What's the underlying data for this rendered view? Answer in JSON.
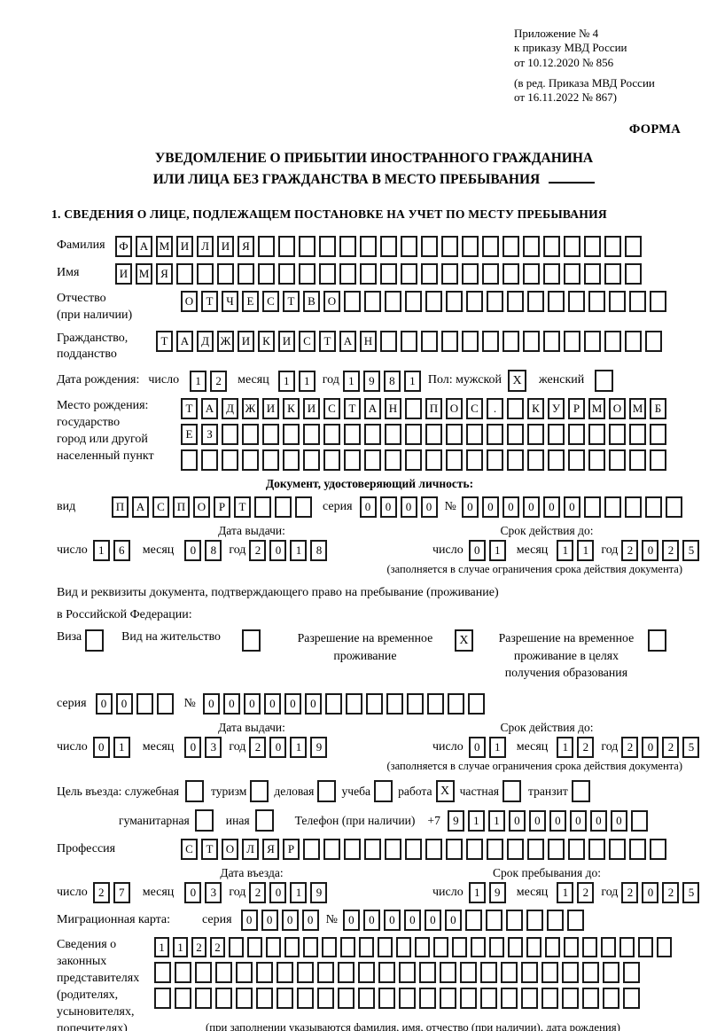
{
  "colors": {
    "ink": "#000000",
    "paper": "#ffffff"
  },
  "mark": "X",
  "page": {
    "appendix": [
      "Приложение № 4",
      "к приказу МВД России",
      "от 10.12.2020 № 856"
    ],
    "amendment": [
      "(в ред. Приказа МВД России",
      "от 16.11.2022 № 867)"
    ],
    "form_label": "ФОРМА",
    "title1": "УВЕДОМЛЕНИЕ О ПРИБЫТИИ ИНОСТРАННОГО ГРАЖДАНИНА",
    "title2": "ИЛИ ЛИЦА БЕЗ ГРАЖДАНСТВА В МЕСТО ПРЕБЫВАНИЯ",
    "section1_heading": "1. СВЕДЕНИЯ О ЛИЦЕ, ПОДЛЕЖАЩЕМ ПОСТАНОВКЕ НА УЧЕТ ПО МЕСТУ ПРЕБЫВАНИЯ"
  },
  "labels": {
    "surname": "Фамилия",
    "name": "Имя",
    "patronymic1": "Отчество",
    "patronymic2": "(при наличии)",
    "citizenship1": "Гражданство,",
    "citizenship2": "подданство",
    "birth_date": "Дата рождения:",
    "day": "число",
    "month": "месяц",
    "year": "год",
    "sex": "Пол: мужской",
    "female": "женский",
    "birth_place1": "Место рождения:",
    "birth_place2": "государство",
    "birth_place3": "город или другой",
    "birth_place4": "населенный пункт",
    "identity_doc": "Документ, удостоверяющий личность:",
    "kind": "вид",
    "series": "серия",
    "number": "№",
    "issue_date": "Дата выдачи:",
    "valid_until": "Срок действия до:",
    "valid_note": "(заполняется в случае ограничения срока действия документа)",
    "residence_doc1": "Вид и реквизиты документа, подтверждающего право на пребывание (проживание)",
    "residence_doc2": "в Российской Федерации:",
    "visa": "Виза",
    "residence_permit": "Вид на жительство",
    "temp_residence": "Разрешение на временное проживание",
    "temp_residence_edu": "Разрешение на временное проживание в целях получения образования",
    "entry_purpose": "Цель въезда: служебная",
    "tourism": "туризм",
    "business": "деловая",
    "study": "учеба",
    "work": "работа",
    "private": "частная",
    "transit": "транзит",
    "humanitarian": "гуманитарная",
    "other": "иная",
    "phone": "Телефон (при наличии)",
    "phone_prefix": "+7",
    "profession": "Профессия",
    "entry_date": "Дата въезда:",
    "stay_until": "Срок пребывания до:",
    "migration_card": "Миграционная карта:",
    "guardians1": "Сведения о",
    "guardians2": "законных",
    "guardians3": "представителях",
    "guardians4": "(родителях,",
    "guardians5": "усыновителях,",
    "guardians6": "попечителях)",
    "guardians_note": "(при заполнении указываются фамилия, имя, отчество (при наличии), дата рождения)"
  },
  "cells": {
    "surname": {
      "text": "ФАМИЛИЯ",
      "len": 26
    },
    "name": {
      "text": "ИМЯ",
      "len": 26
    },
    "patronymic": {
      "text": "ОТЧЕСТВО",
      "len": 24
    },
    "citizenship": {
      "text": "ТАДЖИКИСТАН",
      "len": 25
    },
    "birth_day": {
      "text": "12",
      "len": 2
    },
    "birth_month": {
      "text": "11",
      "len": 2
    },
    "birth_year": {
      "text": "1981",
      "len": 4
    },
    "birth_place_row1": {
      "text": "ТАДЖИКИСТАН ПОС. КУРМОМБ",
      "len": 24
    },
    "birth_place_row2": {
      "text": "ЕЗ",
      "len": 24
    },
    "birth_place_row3": {
      "text": "",
      "len": 24
    },
    "doc_kind": {
      "text": "ПАСПОРТ",
      "len": 10
    },
    "doc_series": {
      "text": "0000",
      "len": 4
    },
    "doc_number": {
      "text": "000000",
      "len": 11
    },
    "doc_issue_day": {
      "text": "16",
      "len": 2
    },
    "doc_issue_month": {
      "text": "08",
      "len": 2
    },
    "doc_issue_year": {
      "text": "2018",
      "len": 4
    },
    "doc_valid_day": {
      "text": "01",
      "len": 2
    },
    "doc_valid_month": {
      "text": "11",
      "len": 2
    },
    "doc_valid_year": {
      "text": "2025",
      "len": 4
    },
    "res_series": {
      "text": "00",
      "len": 4
    },
    "res_number": {
      "text": "000000",
      "len": 14
    },
    "res_issue_day": {
      "text": "01",
      "len": 2
    },
    "res_issue_month": {
      "text": "03",
      "len": 2
    },
    "res_issue_year": {
      "text": "2019",
      "len": 4
    },
    "res_valid_day": {
      "text": "01",
      "len": 2
    },
    "res_valid_month": {
      "text": "12",
      "len": 2
    },
    "res_valid_year": {
      "text": "2025",
      "len": 4
    },
    "phone": {
      "text": "911000000",
      "len": 10
    },
    "profession": {
      "text": "СТОЛЯР",
      "len": 24
    },
    "entry_day": {
      "text": "27",
      "len": 2
    },
    "entry_month": {
      "text": "03",
      "len": 2
    },
    "entry_year": {
      "text": "2019",
      "len": 4
    },
    "stay_day": {
      "text": "19",
      "len": 2
    },
    "stay_month": {
      "text": "12",
      "len": 2
    },
    "stay_year": {
      "text": "2025",
      "len": 4
    },
    "mig_series": {
      "text": "0000",
      "len": 4
    },
    "mig_number": {
      "text": "000000",
      "len": 12
    },
    "guardians_row1": {
      "text": "1122",
      "len": 28
    },
    "guardians_row2": {
      "text": "",
      "len": 24
    },
    "guardians_row3": {
      "text": "",
      "len": 24
    }
  },
  "checks": {
    "sex_male": true,
    "sex_female": false,
    "visa": false,
    "residence_permit": false,
    "temp_residence": true,
    "temp_residence_edu": false,
    "purpose_official": false,
    "purpose_tourism": false,
    "purpose_business": false,
    "purpose_study": false,
    "purpose_work": true,
    "purpose_private": false,
    "purpose_transit": false,
    "purpose_humanitarian": false,
    "purpose_other": false
  }
}
